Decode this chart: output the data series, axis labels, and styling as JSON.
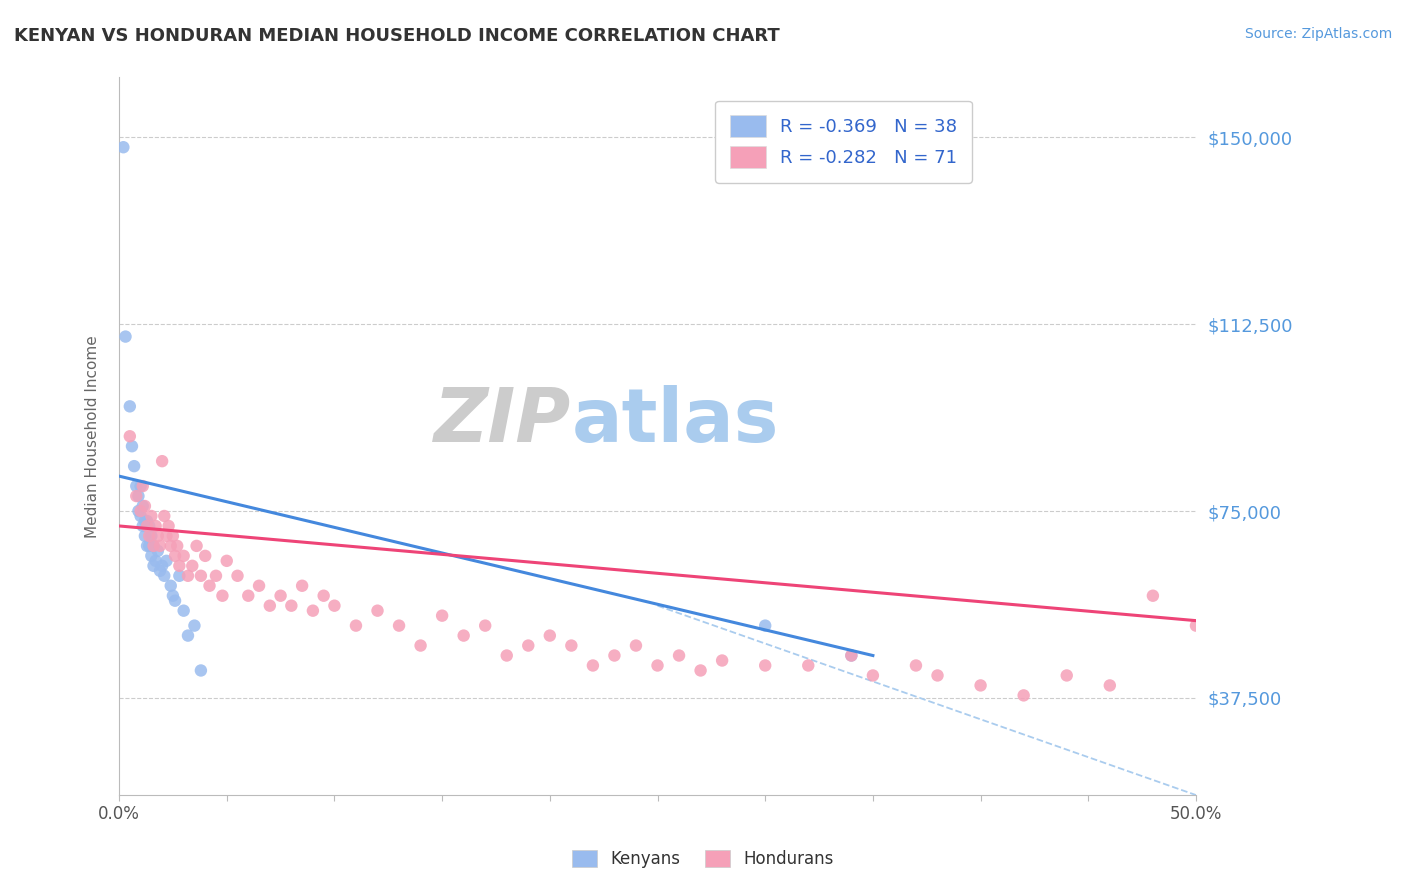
{
  "title": "KENYAN VS HONDURAN MEDIAN HOUSEHOLD INCOME CORRELATION CHART",
  "source_text": "Source: ZipAtlas.com",
  "ylabel": "Median Household Income",
  "xlim": [
    0.0,
    0.5
  ],
  "ylim": [
    18000,
    162000
  ],
  "xtick_vals": [
    0.0,
    0.5
  ],
  "xtick_labels": [
    "0.0%",
    "50.0%"
  ],
  "ytick_vals": [
    37500,
    75000,
    112500,
    150000
  ],
  "ytick_labels": [
    "$37,500",
    "$75,000",
    "$112,500",
    "$150,000"
  ],
  "background_color": "#ffffff",
  "grid_color": "#cccccc",
  "axis_color": "#bbbbbb",
  "title_color": "#333333",
  "ylabel_color": "#666666",
  "ytick_color": "#5599dd",
  "xtick_color": "#555555",
  "kenyan_color": "#99bbee",
  "honduran_color": "#f5a0b8",
  "kenyan_line_color": "#4488dd",
  "honduran_line_color": "#ee4477",
  "dashed_line_color": "#aaccee",
  "watermark_ZIP_color": "#cccccc",
  "watermark_atlas_color": "#aaccee",
  "legend_text_color": "#3366cc",
  "R_kenyan": -0.369,
  "N_kenyan": 38,
  "R_honduran": -0.282,
  "N_honduran": 71,
  "kenyan_line_x0": 0.0,
  "kenyan_line_y0": 82000,
  "kenyan_line_x1": 0.35,
  "kenyan_line_y1": 46000,
  "honduran_line_x0": 0.0,
  "honduran_line_y0": 72000,
  "honduran_line_x1": 0.5,
  "honduran_line_y1": 53000,
  "dash_line_x0": 0.25,
  "dash_line_y0": 56000,
  "dash_line_x1": 0.5,
  "dash_line_y1": 18000,
  "kenyan_x": [
    0.002,
    0.003,
    0.005,
    0.006,
    0.007,
    0.008,
    0.009,
    0.009,
    0.01,
    0.01,
    0.011,
    0.011,
    0.012,
    0.012,
    0.013,
    0.013,
    0.014,
    0.014,
    0.015,
    0.015,
    0.016,
    0.016,
    0.017,
    0.018,
    0.019,
    0.02,
    0.021,
    0.022,
    0.024,
    0.025,
    0.026,
    0.028,
    0.03,
    0.032,
    0.035,
    0.038,
    0.3,
    0.34
  ],
  "kenyan_y": [
    148000,
    110000,
    96000,
    88000,
    84000,
    80000,
    78000,
    75000,
    80000,
    74000,
    72000,
    76000,
    73000,
    70000,
    68000,
    73000,
    72000,
    68000,
    70000,
    66000,
    68000,
    64000,
    65000,
    67000,
    63000,
    64000,
    62000,
    65000,
    60000,
    58000,
    57000,
    62000,
    55000,
    50000,
    52000,
    43000,
    52000,
    46000
  ],
  "honduran_x": [
    0.005,
    0.008,
    0.01,
    0.011,
    0.012,
    0.013,
    0.014,
    0.015,
    0.016,
    0.017,
    0.018,
    0.019,
    0.02,
    0.021,
    0.022,
    0.023,
    0.024,
    0.025,
    0.026,
    0.027,
    0.028,
    0.03,
    0.032,
    0.034,
    0.036,
    0.038,
    0.04,
    0.042,
    0.045,
    0.048,
    0.05,
    0.055,
    0.06,
    0.065,
    0.07,
    0.075,
    0.08,
    0.085,
    0.09,
    0.095,
    0.1,
    0.11,
    0.12,
    0.13,
    0.14,
    0.15,
    0.16,
    0.17,
    0.18,
    0.19,
    0.2,
    0.21,
    0.22,
    0.23,
    0.24,
    0.25,
    0.26,
    0.27,
    0.28,
    0.3,
    0.32,
    0.34,
    0.35,
    0.37,
    0.38,
    0.4,
    0.42,
    0.44,
    0.46,
    0.48,
    0.5
  ],
  "honduran_y": [
    90000,
    78000,
    75000,
    80000,
    76000,
    72000,
    70000,
    74000,
    68000,
    72000,
    70000,
    68000,
    85000,
    74000,
    70000,
    72000,
    68000,
    70000,
    66000,
    68000,
    64000,
    66000,
    62000,
    64000,
    68000,
    62000,
    66000,
    60000,
    62000,
    58000,
    65000,
    62000,
    58000,
    60000,
    56000,
    58000,
    56000,
    60000,
    55000,
    58000,
    56000,
    52000,
    55000,
    52000,
    48000,
    54000,
    50000,
    52000,
    46000,
    48000,
    50000,
    48000,
    44000,
    46000,
    48000,
    44000,
    46000,
    43000,
    45000,
    44000,
    44000,
    46000,
    42000,
    44000,
    42000,
    40000,
    38000,
    42000,
    40000,
    58000,
    52000
  ]
}
